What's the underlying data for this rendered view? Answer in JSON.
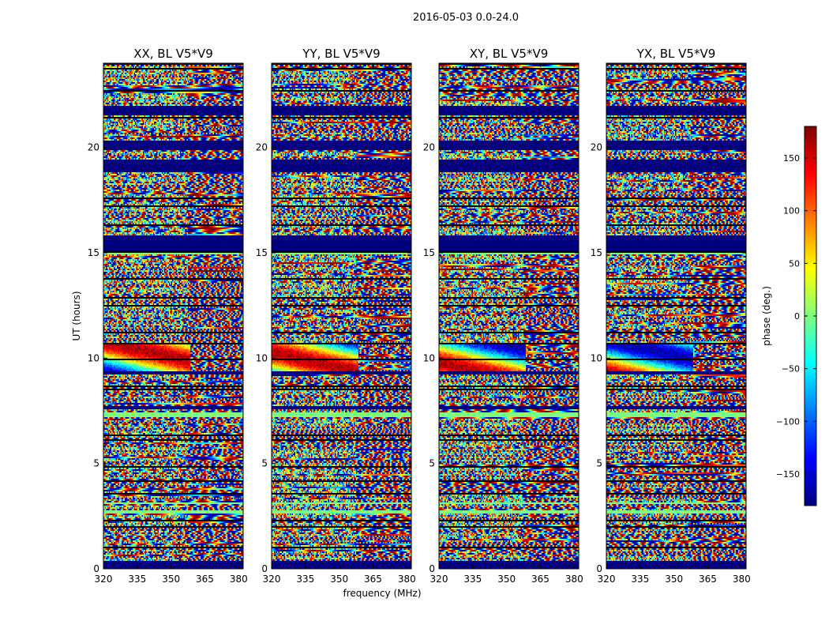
{
  "chart_data": {
    "type": "heatmap",
    "suptitle": "2016-05-03 0.0-24.0",
    "xlabel": "frequency (MHz)",
    "ylabel": "UT (hours)",
    "xlim": [
      320,
      382
    ],
    "ylim": [
      0,
      24
    ],
    "xticks": [
      320,
      335,
      350,
      365,
      380
    ],
    "yticks": [
      0,
      5,
      10,
      15,
      20
    ],
    "colorbar": {
      "label": "phase (deg.)",
      "range": [
        -180,
        180
      ],
      "ticks": [
        150,
        100,
        50,
        0,
        -50,
        -100,
        -150
      ],
      "tick_labels": [
        "150",
        "100",
        "50",
        "0",
        "−50",
        "−100",
        "−150"
      ],
      "colormap": "jet"
    },
    "panels": [
      {
        "title": "XX, BL V5*V9",
        "seed": 11
      },
      {
        "title": "YY, BL V5*V9",
        "seed": 23
      },
      {
        "title": "XY, BL V5*V9",
        "seed": 37
      },
      {
        "title": "YX, BL V5*V9",
        "seed": 53
      }
    ],
    "masked_bands_ut_hours": [
      [
        0.0,
        0.35
      ],
      [
        15.1,
        15.85
      ],
      [
        18.8,
        19.4
      ],
      [
        19.9,
        20.3
      ],
      [
        21.5,
        22.0
      ],
      [
        7.55,
        7.75
      ],
      [
        9.2,
        9.35
      ]
    ],
    "masked_color": "#00007f",
    "uniform_green_bands_ut_hours": [
      [
        2.6,
        2.75
      ],
      [
        7.2,
        7.45
      ],
      [
        3.05,
        3.15
      ],
      [
        14.9,
        15.0
      ]
    ],
    "cmap_stops": [
      "#00007f",
      "#0000ff",
      "#007fff",
      "#00ffff",
      "#7fff7f",
      "#ffff00",
      "#ff7f00",
      "#ff0000",
      "#7f0000"
    ]
  }
}
